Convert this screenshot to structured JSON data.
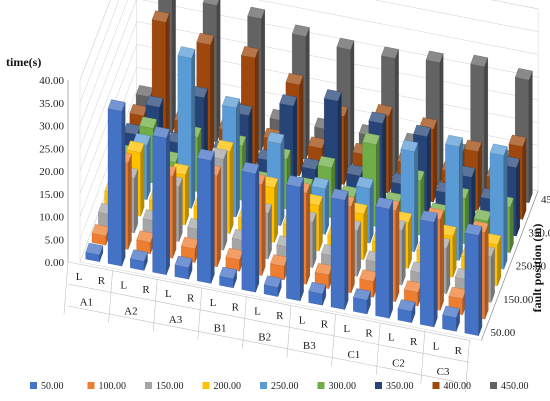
{
  "chart_data": {
    "type": "bar",
    "variant": "3d-column",
    "ylabel": "time(s)",
    "zlabel": "fault position (m)",
    "ylim": [
      0,
      40
    ],
    "yticks": [
      "0.00",
      "5.00",
      "10.00",
      "15.00",
      "20.00",
      "25.00",
      "30.00",
      "35.00",
      "40.00"
    ],
    "zticks": [
      "50.00",
      "150.00",
      "250.00",
      "350.00",
      "450.00"
    ],
    "groups": [
      "A1",
      "A2",
      "A3",
      "B1",
      "B2",
      "B3",
      "C1",
      "C2",
      "C3"
    ],
    "sides": [
      "L",
      "R"
    ],
    "categories": [
      "A1-L",
      "A1-R",
      "A2-L",
      "A2-R",
      "A3-L",
      "A3-R",
      "B1-L",
      "B1-R",
      "B2-L",
      "B2-R",
      "B3-L",
      "B3-R",
      "C1-L",
      "C1-R",
      "C2-L",
      "C2-R",
      "C3-L",
      "C3-R"
    ],
    "grid": true,
    "legend_position": "bottom",
    "series": [
      {
        "name": "50.00",
        "color": "#4472C4",
        "values": [
          1.5,
          34.0,
          2.0,
          30.0,
          2.5,
          27.0,
          2.0,
          26.0,
          2.0,
          25.0,
          2.5,
          24.0,
          3.0,
          24.0,
          2.5,
          23.0,
          3.0,
          22.0
        ]
      },
      {
        "name": "100.00",
        "color": "#ED7D31",
        "values": [
          2.0,
          19.0,
          2.5,
          18.0,
          3.0,
          20.0,
          2.5,
          20.0,
          3.0,
          20.0,
          3.0,
          19.0,
          3.5,
          20.0,
          3.0,
          20.0,
          3.5,
          19.0
        ]
      },
      {
        "name": "150.00",
        "color": "#A5A5A5",
        "values": [
          3.0,
          12.0,
          3.5,
          12.0,
          3.5,
          20.0,
          3.0,
          10.0,
          3.5,
          10.0,
          3.5,
          10.0,
          4.0,
          12.0,
          3.5,
          10.0,
          4.0,
          10.0
        ]
      },
      {
        "name": "200.00",
        "color": "#FFC000",
        "values": [
          4.0,
          14.0,
          4.0,
          11.0,
          4.5,
          18.0,
          4.0,
          12.0,
          4.5,
          10.0,
          4.0,
          10.0,
          4.5,
          10.0,
          4.5,
          9.0,
          5.0,
          9.0
        ]
      },
      {
        "name": "250.00",
        "color": "#5B9BD5",
        "values": [
          4.5,
          12.0,
          5.0,
          33.0,
          5.0,
          24.0,
          4.5,
          18.0,
          5.0,
          10.0,
          5.0,
          12.0,
          5.0,
          22.0,
          5.0,
          25.0,
          5.5,
          25.0
        ]
      },
      {
        "name": "300.00",
        "color": "#70AD47",
        "values": [
          5.0,
          12.0,
          5.5,
          12.0,
          5.5,
          12.0,
          5.0,
          11.0,
          5.5,
          11.0,
          5.5,
          18.0,
          6.0,
          12.0,
          5.5,
          10.0,
          6.0,
          10.0
        ]
      },
      {
        "name": "350.00",
        "color": "#264478",
        "values": [
          6.0,
          13.0,
          6.0,
          17.0,
          6.0,
          15.0,
          6.0,
          19.0,
          6.0,
          22.0,
          6.5,
          19.0,
          6.5,
          18.0,
          6.5,
          11.0,
          7.0,
          15.0
        ]
      },
      {
        "name": "400.00",
        "color": "#9E480E",
        "values": [
          6.5,
          28.0,
          7.0,
          25.0,
          7.0,
          24.0,
          7.0,
          20.0,
          7.0,
          15.0,
          7.5,
          17.0,
          7.5,
          16.0,
          7.5,
          13.0,
          8.0,
          16.0
        ]
      },
      {
        "name": "450.00",
        "color": "#636363",
        "values": [
          7.0,
          31.0,
          7.5,
          30.0,
          7.5,
          29.0,
          7.5,
          27.0,
          7.5,
          26.0,
          8.0,
          26.0,
          8.0,
          27.0,
          8.0,
          28.0,
          8.5,
          27.0
        ]
      }
    ]
  }
}
